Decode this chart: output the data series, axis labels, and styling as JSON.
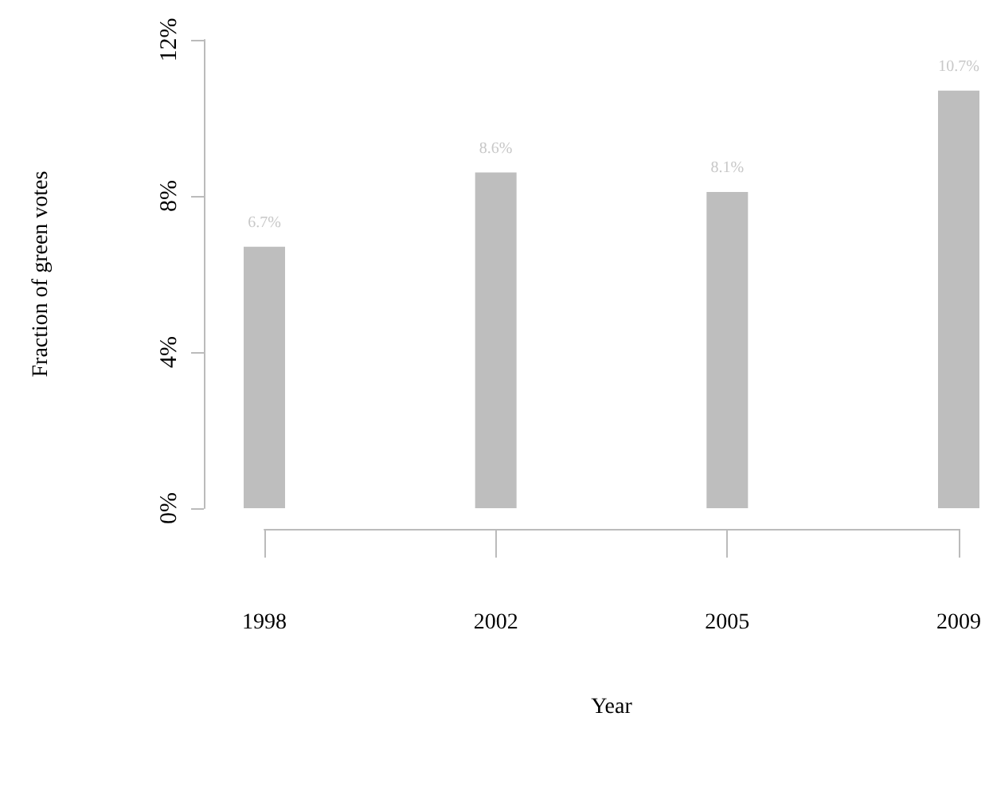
{
  "chart_data": {
    "type": "bar",
    "xlabel": "Year",
    "ylabel": "Fraction of green votes",
    "categories": [
      "1998",
      "2002",
      "2005",
      "2009"
    ],
    "values": [
      6.7,
      8.6,
      8.1,
      10.7
    ],
    "value_labels": [
      "6.7%",
      "8.6%",
      "8.1%",
      "10.7%"
    ],
    "color": "#bebebe",
    "ylim": [
      0,
      12
    ],
    "yticks": [
      {
        "value": 0,
        "label": "0%"
      },
      {
        "value": 4,
        "label": "4%"
      },
      {
        "value": 8,
        "label": "8%"
      },
      {
        "value": 12,
        "label": "12%"
      }
    ],
    "grid": false
  }
}
